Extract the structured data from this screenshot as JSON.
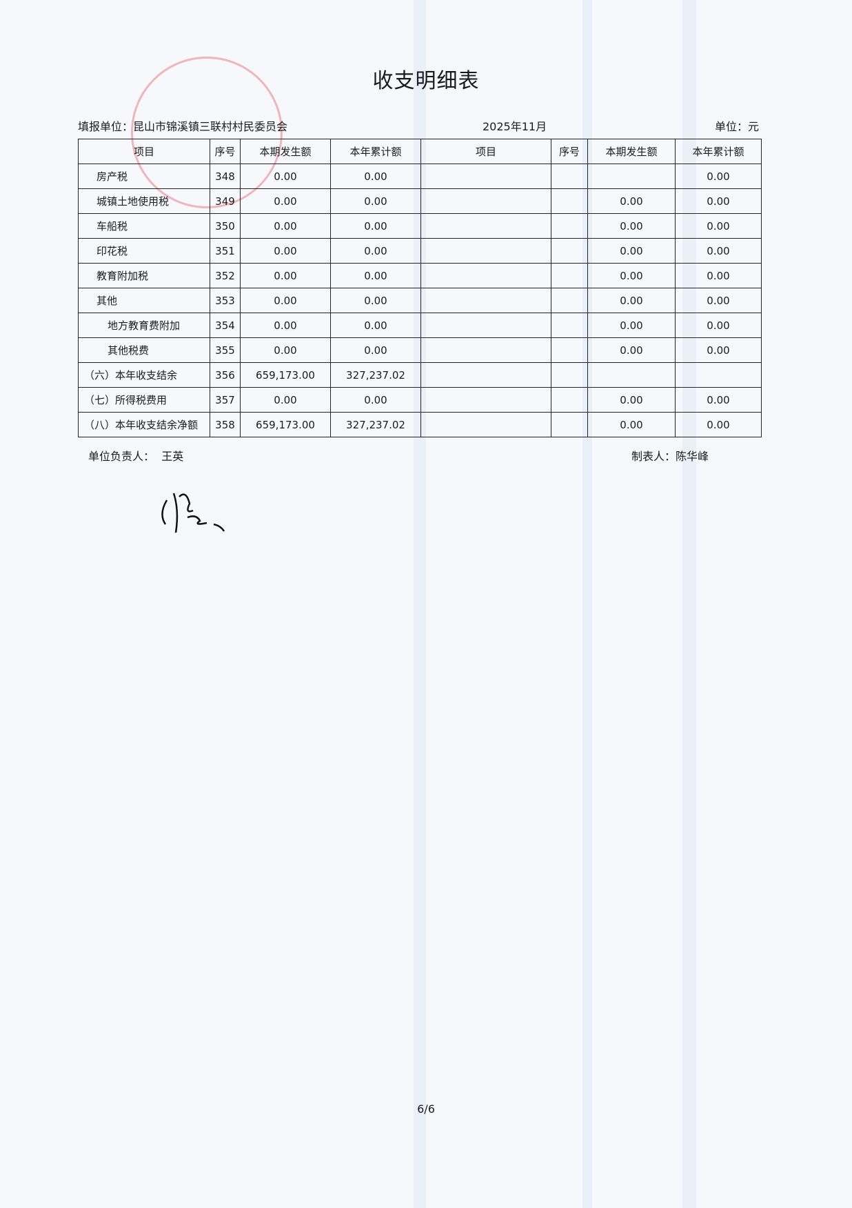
{
  "title": "收支明细表",
  "header": {
    "unit_org": "填报单位：昆山市锦溪镇三联村村民委员会",
    "period": "2025年11月",
    "currency_unit": "单位：元"
  },
  "columns": [
    "项目",
    "序号",
    "本期发生额",
    "本年累计额",
    "项目",
    "序号",
    "本期发生额",
    "本年累计额"
  ],
  "rows": [
    {
      "item": "房产税",
      "indent": 1,
      "seq": "348",
      "cur": "0.00",
      "ytd": "0.00",
      "r_item": "",
      "r_seq": "",
      "r_cur": "",
      "r_ytd": "0.00"
    },
    {
      "item": "城镇土地使用税",
      "indent": 1,
      "seq": "349",
      "cur": "0.00",
      "ytd": "0.00",
      "r_item": "",
      "r_seq": "",
      "r_cur": "0.00",
      "r_ytd": "0.00"
    },
    {
      "item": "车船税",
      "indent": 1,
      "seq": "350",
      "cur": "0.00",
      "ytd": "0.00",
      "r_item": "",
      "r_seq": "",
      "r_cur": "0.00",
      "r_ytd": "0.00"
    },
    {
      "item": "印花税",
      "indent": 1,
      "seq": "351",
      "cur": "0.00",
      "ytd": "0.00",
      "r_item": "",
      "r_seq": "",
      "r_cur": "0.00",
      "r_ytd": "0.00"
    },
    {
      "item": "教育附加税",
      "indent": 1,
      "seq": "352",
      "cur": "0.00",
      "ytd": "0.00",
      "r_item": "",
      "r_seq": "",
      "r_cur": "0.00",
      "r_ytd": "0.00"
    },
    {
      "item": "其他",
      "indent": 1,
      "seq": "353",
      "cur": "0.00",
      "ytd": "0.00",
      "r_item": "",
      "r_seq": "",
      "r_cur": "0.00",
      "r_ytd": "0.00"
    },
    {
      "item": "地方教育费附加",
      "indent": 2,
      "seq": "354",
      "cur": "0.00",
      "ytd": "0.00",
      "r_item": "",
      "r_seq": "",
      "r_cur": "0.00",
      "r_ytd": "0.00"
    },
    {
      "item": "其他税费",
      "indent": 2,
      "seq": "355",
      "cur": "0.00",
      "ytd": "0.00",
      "r_item": "",
      "r_seq": "",
      "r_cur": "0.00",
      "r_ytd": "0.00"
    },
    {
      "item": "（六）本年收支结余",
      "indent": 0,
      "seq": "356",
      "cur": "659,173.00",
      "ytd": "327,237.02",
      "r_item": "",
      "r_seq": "",
      "r_cur": "",
      "r_ytd": ""
    },
    {
      "item": "（七）所得税费用",
      "indent": 0,
      "seq": "357",
      "cur": "0.00",
      "ytd": "0.00",
      "r_item": "",
      "r_seq": "",
      "r_cur": "0.00",
      "r_ytd": "0.00"
    },
    {
      "item": "（八）本年收支结余净额",
      "indent": 0,
      "seq": "358",
      "cur": "659,173.00",
      "ytd": "327,237.02",
      "r_item": "",
      "r_seq": "",
      "r_cur": "0.00",
      "r_ytd": "0.00"
    }
  ],
  "footer": {
    "head_label": "单位负责人：",
    "head_name": "王英",
    "preparer_label": "制表人：",
    "preparer_name": "陈华峰"
  },
  "page_number": "6/6",
  "stamp_color": "#dc3c46"
}
